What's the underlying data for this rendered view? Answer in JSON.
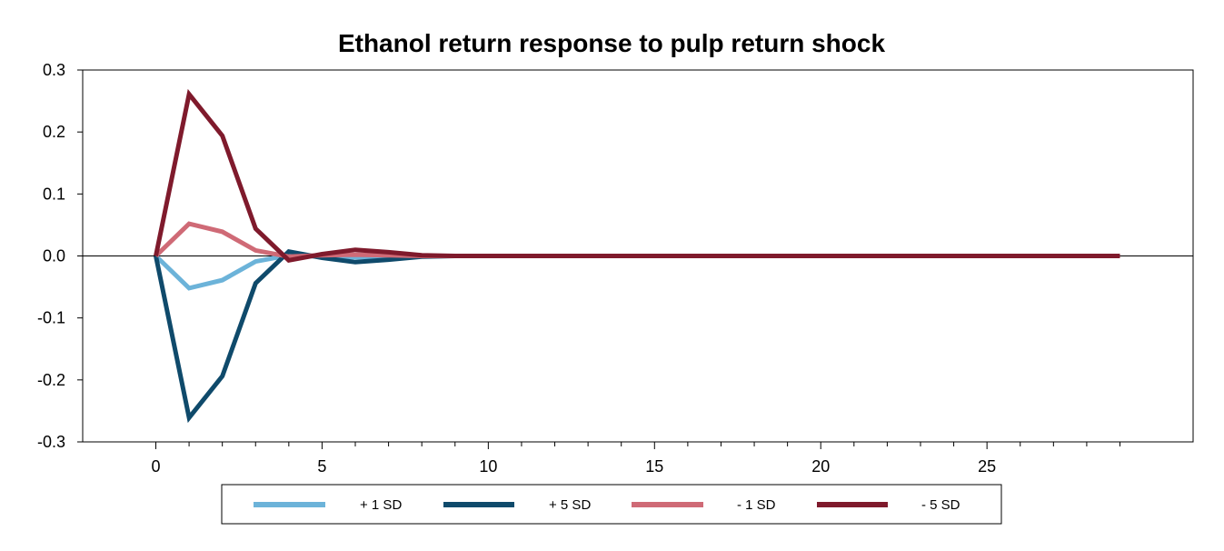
{
  "chart_data": {
    "type": "line",
    "title": "Ethanol return response to pulp return shock",
    "xlabel": "",
    "ylabel": "",
    "xlim": [
      -2.2,
      31.2
    ],
    "ylim": [
      -0.3,
      0.3
    ],
    "xticks": [
      0,
      5,
      10,
      15,
      20,
      25
    ],
    "xminor": [
      1,
      2,
      3,
      4,
      6,
      7,
      8,
      9,
      11,
      12,
      13,
      14,
      16,
      17,
      18,
      19,
      21,
      22,
      23,
      24,
      26,
      27,
      28,
      29
    ],
    "yticks": [
      0.3,
      0.2,
      0.1,
      0.0,
      -0.1,
      -0.2,
      -0.3
    ],
    "ytick_labels": [
      "0.3",
      "0.2",
      "0.1",
      "0.0",
      "-0.1",
      "-0.2",
      "-0.3"
    ],
    "grid": false,
    "zero_line": true,
    "legend_position": "bottom",
    "x": [
      0,
      1,
      2,
      3,
      4,
      5,
      6,
      7,
      8,
      9,
      10,
      11,
      12,
      13,
      14,
      15,
      16,
      17,
      18,
      19,
      20,
      21,
      22,
      23,
      24,
      25,
      26,
      27,
      28,
      29
    ],
    "series": [
      {
        "name": "+ 1 SD",
        "color": "#6cb3d9",
        "values": [
          0,
          -0.052,
          -0.039,
          -0.009,
          0.001,
          -0.001,
          -0.002,
          -0.001,
          0,
          0,
          0,
          0,
          0,
          0,
          0,
          0,
          0,
          0,
          0,
          0,
          0,
          0,
          0,
          0,
          0,
          0,
          0,
          0,
          0,
          0
        ]
      },
      {
        "name": "+ 5 SD",
        "color": "#0f4a6b",
        "values": [
          0,
          -0.261,
          -0.194,
          -0.044,
          0.007,
          -0.003,
          -0.01,
          -0.006,
          -0.001,
          0,
          0,
          0,
          0,
          0,
          0,
          0,
          0,
          0,
          0,
          0,
          0,
          0,
          0,
          0,
          0,
          0,
          0,
          0,
          0,
          0
        ]
      },
      {
        "name": "- 1 SD",
        "color": "#cf6a76",
        "values": [
          0,
          0.052,
          0.039,
          0.009,
          -0.001,
          0.001,
          0.002,
          0.001,
          0,
          0,
          0,
          0,
          0,
          0,
          0,
          0,
          0,
          0,
          0,
          0,
          0,
          0,
          0,
          0,
          0,
          0,
          0,
          0,
          0,
          0
        ]
      },
      {
        "name": "- 5 SD",
        "color": "#7f1a2c",
        "values": [
          0,
          0.261,
          0.194,
          0.044,
          -0.007,
          0.003,
          0.01,
          0.006,
          0.001,
          0,
          0,
          0,
          0,
          0,
          0,
          0,
          0,
          0,
          0,
          0,
          0,
          0,
          0,
          0,
          0,
          0,
          0,
          0,
          0,
          0
        ]
      }
    ]
  }
}
